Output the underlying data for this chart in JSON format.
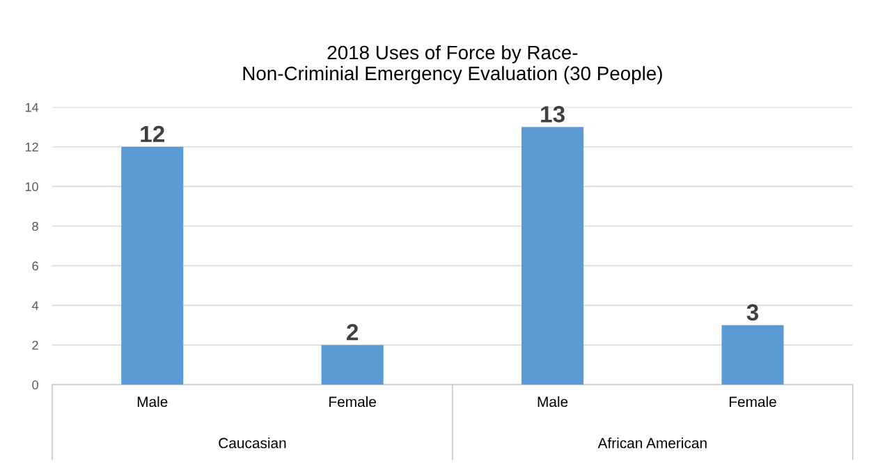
{
  "chart_data": {
    "type": "bar",
    "title": "2018 Uses of Force by Race-\nNon-Criminial Emergency Evaluation (30 People)",
    "categories": [
      "Male",
      "Female",
      "Male",
      "Female"
    ],
    "values": [
      12,
      2,
      13,
      3
    ],
    "color": "#5b9bd5",
    "annotations": [
      "Caucasian",
      "African American"
    ],
    "ylim": [
      0,
      14
    ],
    "yticks": [
      0,
      2,
      4,
      6,
      8,
      10,
      12,
      14
    ],
    "grid": "y",
    "data_labels": true
  }
}
